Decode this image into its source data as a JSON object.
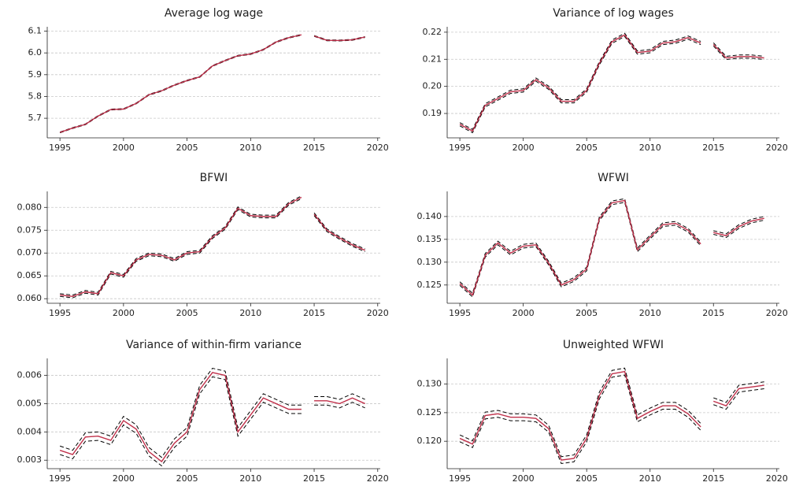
{
  "chart_data": [
    {
      "type": "line",
      "title": "Average log wage",
      "x": [
        1995,
        1996,
        1997,
        1998,
        1999,
        2000,
        2001,
        2002,
        2003,
        2004,
        2005,
        2006,
        2007,
        2008,
        2009,
        2010,
        2011,
        2012,
        2013,
        2014,
        null,
        2015,
        2016,
        2017,
        2018,
        2019
      ],
      "xlim": [
        1994,
        2020.2
      ],
      "xticks": [
        1995,
        2000,
        2005,
        2010,
        2015,
        2020
      ],
      "ylim": [
        5.61,
        6.12
      ],
      "yticks": [
        5.7,
        5.8,
        5.9,
        {
          "value": 6.0,
          "label": "6.0"
        },
        6.1
      ],
      "grid": true,
      "series": [
        {
          "color": "#000000",
          "style": "dashed",
          "values": [
            5.637,
            5.657,
            5.674,
            5.712,
            5.742,
            5.744,
            5.77,
            5.81,
            5.828,
            5.854,
            5.875,
            5.892,
            5.942,
            5.967,
            5.989,
            5.997,
            6.017,
            6.052,
            6.072,
            6.085,
            null,
            6.08,
            6.06,
            6.059,
            6.062,
            6.075
          ]
        },
        {
          "color": "#000000",
          "style": "dashed",
          "values": [
            5.633,
            5.653,
            5.67,
            5.708,
            5.738,
            5.74,
            5.766,
            5.806,
            5.824,
            5.85,
            5.871,
            5.888,
            5.938,
            5.963,
            5.985,
            5.993,
            6.013,
            6.048,
            6.068,
            6.081,
            null,
            6.076,
            6.056,
            6.055,
            6.058,
            6.071
          ]
        },
        {
          "color": "#c0304a",
          "style": "solid",
          "values": [
            5.635,
            5.655,
            5.672,
            5.71,
            5.74,
            5.742,
            5.768,
            5.808,
            5.826,
            5.852,
            5.873,
            5.89,
            5.94,
            5.965,
            5.987,
            5.995,
            6.015,
            6.05,
            6.07,
            6.083,
            null,
            6.078,
            6.058,
            6.057,
            6.06,
            6.073
          ]
        }
      ]
    },
    {
      "type": "line",
      "title": "Variance of log wages",
      "x": [
        1995,
        1996,
        1997,
        1998,
        1999,
        2000,
        2001,
        2002,
        2003,
        2004,
        2005,
        2006,
        2007,
        2008,
        2009,
        2010,
        2011,
        2012,
        2013,
        2014,
        null,
        2015,
        2016,
        2017,
        2018,
        2019
      ],
      "xlim": [
        1994,
        2020.2
      ],
      "xticks": [
        1995,
        2000,
        2005,
        2010,
        2015,
        2020
      ],
      "ylim": [
        0.181,
        0.222
      ],
      "yticks": [
        0.19,
        {
          "value": 0.2,
          "label": "0.20"
        },
        0.21,
        0.22
      ],
      "grid": true,
      "series": [
        {
          "color": "#000000",
          "style": "dashed",
          "values": [
            0.1866,
            0.1841,
            0.1936,
            0.1961,
            0.1986,
            0.1991,
            0.2031,
            0.2001,
            0.1951,
            0.1951,
            0.1991,
            0.2091,
            0.2171,
            0.2196,
            0.2131,
            0.2136,
            0.2166,
            0.2171,
            0.2186,
            0.2166,
            null,
            0.2161,
            0.2111,
            0.2116,
            0.2116,
            0.2111
          ]
        },
        {
          "color": "#000000",
          "style": "dashed",
          "values": [
            0.1854,
            0.1829,
            0.1924,
            0.1949,
            0.1974,
            0.1979,
            0.2019,
            0.1989,
            0.1939,
            0.1939,
            0.1979,
            0.2079,
            0.2159,
            0.2184,
            0.2119,
            0.2124,
            0.2154,
            0.2159,
            0.2174,
            0.2154,
            null,
            0.2149,
            0.2099,
            0.2104,
            0.2104,
            0.2099
          ]
        },
        {
          "color": "#c0304a",
          "style": "solid",
          "values": [
            0.186,
            0.1835,
            0.193,
            0.1955,
            0.198,
            0.1985,
            0.2025,
            0.1995,
            0.1945,
            0.1945,
            0.1985,
            0.2085,
            0.2165,
            0.219,
            0.2125,
            0.213,
            0.216,
            0.2165,
            0.218,
            0.216,
            null,
            0.2155,
            0.2105,
            0.211,
            0.211,
            0.2105
          ]
        }
      ]
    },
    {
      "type": "line",
      "title": "BFWI",
      "x": [
        1995,
        1996,
        1997,
        1998,
        1999,
        2000,
        2001,
        2002,
        2003,
        2004,
        2005,
        2006,
        2007,
        2008,
        2009,
        2010,
        2011,
        2012,
        2013,
        2014,
        null,
        2015,
        2016,
        2017,
        2018,
        2019
      ],
      "xlim": [
        1994,
        2020.2
      ],
      "xticks": [
        1995,
        2000,
        2005,
        2010,
        2015,
        2020
      ],
      "ylim": [
        0.059,
        0.0835
      ],
      "yticks": [
        {
          "value": 0.06,
          "label": "0.060"
        },
        0.065,
        {
          "value": 0.07,
          "label": "0.070"
        },
        0.075,
        {
          "value": 0.08,
          "label": "0.080"
        }
      ],
      "grid": true,
      "series": [
        {
          "color": "#000000",
          "style": "dashed",
          "values": [
            0.0611,
            0.0608,
            0.0618,
            0.0614,
            0.066,
            0.0653,
            0.0688,
            0.07,
            0.0698,
            0.0688,
            0.0703,
            0.0706,
            0.0738,
            0.0758,
            0.0801,
            0.0785,
            0.0783,
            0.0783,
            0.0811,
            0.0825,
            null,
            0.0788,
            0.0753,
            0.0736,
            0.0721,
            0.0709
          ]
        },
        {
          "color": "#000000",
          "style": "dashed",
          "values": [
            0.0605,
            0.0602,
            0.0612,
            0.0608,
            0.0654,
            0.0647,
            0.0682,
            0.0694,
            0.0692,
            0.0682,
            0.0697,
            0.07,
            0.0732,
            0.0752,
            0.0795,
            0.0779,
            0.0777,
            0.0777,
            0.0805,
            0.0819,
            null,
            0.0782,
            0.0747,
            0.073,
            0.0715,
            0.0703
          ]
        },
        {
          "color": "#c0304a",
          "style": "solid",
          "values": [
            0.0608,
            0.0605,
            0.0615,
            0.0611,
            0.0657,
            0.065,
            0.0685,
            0.0697,
            0.0695,
            0.0685,
            0.07,
            0.0703,
            0.0735,
            0.0755,
            0.0798,
            0.0782,
            0.078,
            0.078,
            0.0808,
            0.0822,
            null,
            0.0785,
            0.075,
            0.0733,
            0.0718,
            0.0706
          ]
        }
      ]
    },
    {
      "type": "line",
      "title": "WFWI",
      "x": [
        1995,
        1996,
        1997,
        1998,
        1999,
        2000,
        2001,
        2002,
        2003,
        2004,
        2005,
        2006,
        2007,
        2008,
        2009,
        2010,
        2011,
        2012,
        2013,
        2014,
        null,
        2015,
        2016,
        2017,
        2018,
        2019
      ],
      "xlim": [
        1994,
        2020.2
      ],
      "xticks": [
        1995,
        2000,
        2005,
        2010,
        2015,
        2020
      ],
      "ylim": [
        0.121,
        0.1455
      ],
      "yticks": [
        0.125,
        {
          "value": 0.13,
          "label": "0.130"
        },
        0.135,
        {
          "value": 0.14,
          "label": "0.140"
        }
      ],
      "grid": true,
      "series": [
        {
          "color": "#000000",
          "style": "dashed",
          "values": [
            0.1257,
            0.1232,
            0.1319,
            0.1346,
            0.1324,
            0.1339,
            0.1342,
            0.1302,
            0.1254,
            0.1266,
            0.1289,
            0.1399,
            0.1434,
            0.1439,
            0.1331,
            0.1359,
            0.1386,
            0.1389,
            0.1374,
            0.1344,
            null,
            0.1369,
            0.1362,
            0.1382,
            0.1394,
            0.14
          ]
        },
        {
          "color": "#000000",
          "style": "dashed",
          "values": [
            0.1249,
            0.1224,
            0.1311,
            0.1338,
            0.1316,
            0.1331,
            0.1334,
            0.1294,
            0.1246,
            0.1258,
            0.1281,
            0.1391,
            0.1426,
            0.1431,
            0.1323,
            0.1351,
            0.1378,
            0.1381,
            0.1366,
            0.1336,
            null,
            0.1361,
            0.1354,
            0.1374,
            0.1386,
            0.1392
          ]
        },
        {
          "color": "#c0304a",
          "style": "solid",
          "values": [
            0.1253,
            0.1228,
            0.1315,
            0.1342,
            0.132,
            0.1335,
            0.1338,
            0.1298,
            0.125,
            0.1262,
            0.1285,
            0.1395,
            0.143,
            0.1435,
            0.1327,
            0.1355,
            0.1382,
            0.1385,
            0.137,
            0.134,
            null,
            0.1365,
            0.1358,
            0.1378,
            0.139,
            0.1396
          ]
        }
      ]
    },
    {
      "type": "line",
      "title": "Variance of within-firm variance",
      "x": [
        1995,
        1996,
        1997,
        1998,
        1999,
        2000,
        2001,
        2002,
        2003,
        2004,
        2005,
        2006,
        2007,
        2008,
        2009,
        2010,
        2011,
        2012,
        2013,
        2014,
        null,
        2015,
        2016,
        2017,
        2018,
        2019
      ],
      "xlim": [
        1994,
        2020.2
      ],
      "xticks": [
        1995,
        2000,
        2005,
        2010,
        2015,
        2020
      ],
      "ylim": [
        0.0027,
        0.0066
      ],
      "yticks": [
        0.003,
        0.004,
        0.005,
        0.006
      ],
      "grid": true,
      "series": [
        {
          "color": "#000000",
          "style": "dashed",
          "values": [
            0.0035,
            0.00335,
            0.00397,
            0.004,
            0.00385,
            0.00455,
            0.00425,
            0.00345,
            0.0031,
            0.00375,
            0.00415,
            0.00565,
            0.00625,
            0.00615,
            0.00415,
            0.00475,
            0.00535,
            0.00515,
            0.00495,
            0.00495,
            null,
            0.00525,
            0.00525,
            0.00515,
            0.00535,
            0.00515
          ]
        },
        {
          "color": "#000000",
          "style": "dashed",
          "values": [
            0.0032,
            0.00305,
            0.00367,
            0.0037,
            0.00355,
            0.00425,
            0.00395,
            0.00315,
            0.0028,
            0.00345,
            0.00385,
            0.00535,
            0.00595,
            0.00585,
            0.00385,
            0.00445,
            0.00505,
            0.00485,
            0.00465,
            0.00465,
            null,
            0.00495,
            0.00495,
            0.00485,
            0.00505,
            0.00485
          ]
        },
        {
          "color": "#c0304a",
          "style": "solid",
          "values": [
            0.00335,
            0.0032,
            0.00382,
            0.00385,
            0.0037,
            0.0044,
            0.0041,
            0.0033,
            0.00295,
            0.0036,
            0.004,
            0.0055,
            0.0061,
            0.006,
            0.004,
            0.0046,
            0.0052,
            0.005,
            0.0048,
            0.0048,
            null,
            0.0051,
            0.0051,
            0.005,
            0.0052,
            0.005
          ]
        }
      ]
    },
    {
      "type": "line",
      "title": "Unweighted WFWI",
      "x": [
        1995,
        1996,
        1997,
        1998,
        1999,
        2000,
        2001,
        2002,
        2003,
        2004,
        2005,
        2006,
        2007,
        2008,
        2009,
        2010,
        2011,
        2012,
        2013,
        2014,
        null,
        2015,
        2016,
        2017,
        2018,
        2019
      ],
      "xlim": [
        1994,
        2020.2
      ],
      "xticks": [
        1995,
        2000,
        2005,
        2010,
        2015,
        2020
      ],
      "ylim": [
        0.1152,
        0.1345
      ],
      "yticks": [
        {
          "value": 0.12,
          "label": "0.120"
        },
        0.125,
        {
          "value": 0.13,
          "label": "0.130"
        }
      ],
      "grid": true,
      "series": [
        {
          "color": "#000000",
          "style": "dashed",
          "values": [
            0.1211,
            0.1201,
            0.1251,
            0.1254,
            0.1248,
            0.1248,
            0.1246,
            0.1228,
            0.1173,
            0.1176,
            0.1211,
            0.1286,
            0.1324,
            0.1328,
            0.1246,
            0.1258,
            0.1268,
            0.1268,
            0.1254,
            0.1231,
            null,
            0.1276,
            0.1268,
            0.1298,
            0.1301,
            0.1304
          ]
        },
        {
          "color": "#000000",
          "style": "dashed",
          "values": [
            0.1199,
            0.1189,
            0.1239,
            0.1242,
            0.1236,
            0.1236,
            0.1234,
            0.1216,
            0.1161,
            0.1164,
            0.1199,
            0.1274,
            0.1312,
            0.1316,
            0.1234,
            0.1246,
            0.1256,
            0.1256,
            0.1242,
            0.1219,
            null,
            0.1264,
            0.1256,
            0.1286,
            0.1289,
            0.1292
          ]
        },
        {
          "color": "#c0304a",
          "style": "solid",
          "values": [
            0.1205,
            0.1195,
            0.1245,
            0.1248,
            0.1242,
            0.1242,
            0.124,
            0.1222,
            0.1167,
            0.117,
            0.1205,
            0.128,
            0.1318,
            0.1322,
            0.124,
            0.1252,
            0.1262,
            0.1262,
            0.1248,
            0.1225,
            null,
            0.127,
            0.1262,
            0.1292,
            0.1295,
            0.1298
          ]
        }
      ]
    }
  ]
}
